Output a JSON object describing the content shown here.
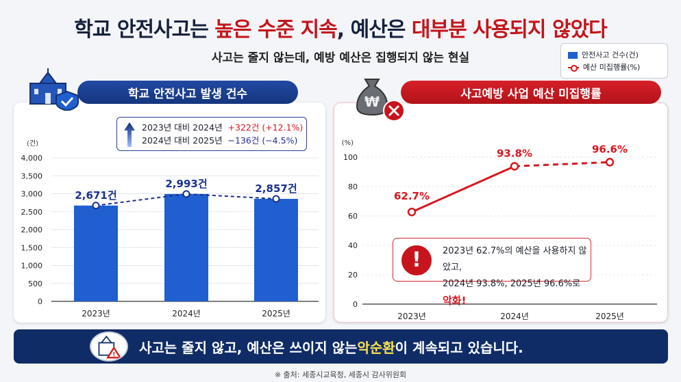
{
  "title": {
    "part1": "학교 안전사고는 ",
    "part2": "높은 수준 지속",
    "part3": ", 예산은 ",
    "part4": "대부분 사용되지 않았다"
  },
  "subtitle": "사고는 줄지 않는데, 예방 예산은 집행되지 않는 현실",
  "legend": {
    "items": [
      "안전사고 건수(건)",
      "예산 미집행률(%)"
    ]
  },
  "left_panel": {
    "header": "학교 안전사고 발생 건수",
    "change": {
      "row1_label": "2023년 대비 2024년",
      "row1_value": "+322건 (+12.1%)",
      "row2_label": "2024년 대비 2025년",
      "row2_value": "−136건 (−4.5%)"
    }
  },
  "right_panel": {
    "header": "사고예방 사업 예산 미집행률",
    "alert": {
      "line1": "2023년 62.7%의 예산을 사용하지 않았고,",
      "line2": "2024년 93.8%, 2025년 96.6%로 ",
      "line2_highlight": "악화!"
    }
  },
  "banner": {
    "text1": "사고는 줄지 않고, 예산은 쓰이지 않는 ",
    "highlight": "악순환",
    "text2": "이 계속되고 있습니다."
  },
  "source": "※ 출처: 세종시교육청, 세종시 감사위원회",
  "colors": {
    "bar": "#1f5fd0",
    "line": "#d8161e",
    "navy": "#0f2c66"
  },
  "chart_data": [
    {
      "type": "bar",
      "categories": [
        "2023년",
        "2024년",
        "2025년"
      ],
      "values": [
        2671,
        2993,
        2857
      ],
      "data_labels": [
        "2,671건",
        "2,993건",
        "2,857건"
      ],
      "ylabel": "(건)",
      "ylim": [
        0,
        4000
      ],
      "yticks": [
        "0",
        "500",
        "1,000",
        "1,500",
        "2,000",
        "2,500",
        "3,000",
        "3,500",
        "4,000"
      ],
      "grid": true,
      "overlay_line": "dashed"
    },
    {
      "type": "line",
      "categories": [
        "2023년",
        "2024년",
        "2025년"
      ],
      "values": [
        62.7,
        93.8,
        96.6
      ],
      "data_labels": [
        "62.7%",
        "93.8%",
        "96.6%"
      ],
      "ylabel": "(%)",
      "ylim": [
        0,
        100
      ],
      "yticks": [
        "0",
        "20",
        "40",
        "60",
        "80",
        "100"
      ],
      "grid": true,
      "last_segment": "dashed"
    }
  ]
}
